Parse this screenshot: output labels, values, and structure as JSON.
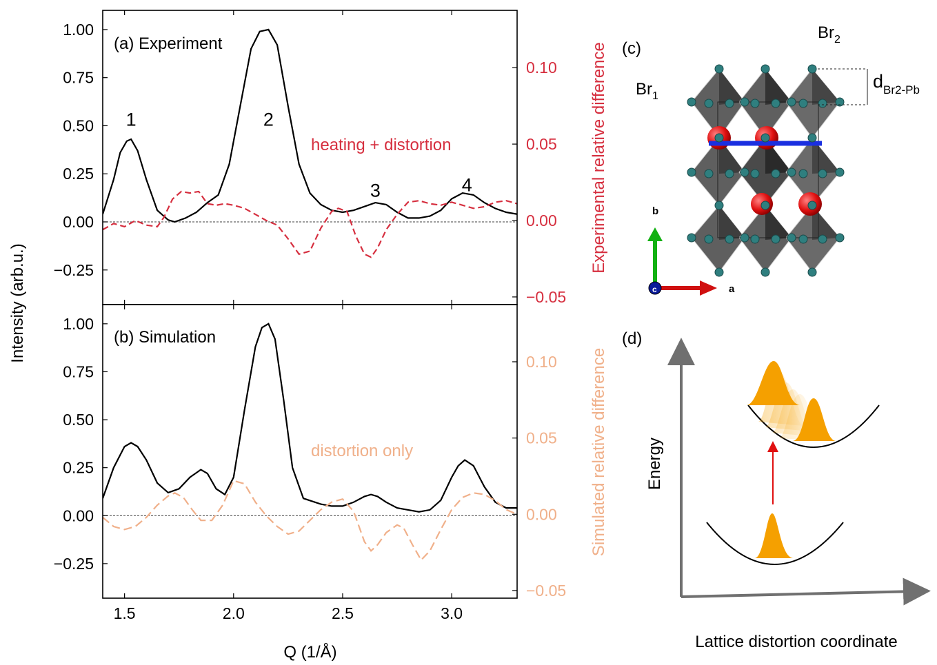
{
  "figure": {
    "x_axis_label": "Q (1/Å)",
    "y_axis_label_left": "Intensity (arb.u.)"
  },
  "chart_data": [
    {
      "id": "a",
      "type": "line",
      "panel_label": "(a) Experiment",
      "annotation": "heating + distortion",
      "xlim": [
        1.4,
        3.3
      ],
      "ylim_left": [
        -0.43,
        1.1
      ],
      "ylim_right": [
        -0.055,
        0.1375
      ],
      "x_ticks": [
        1.5,
        2.0,
        2.5,
        3.0
      ],
      "y_ticks_left": [
        -0.25,
        0.0,
        0.25,
        0.5,
        0.75,
        1.0
      ],
      "y_ticks_right": [
        -0.05,
        0.0,
        0.05,
        0.1
      ],
      "right_axis_label": "Experimental relative difference",
      "right_color": "#d62f3f",
      "peak_labels": [
        {
          "text": "1",
          "x": 1.53,
          "y": 0.5
        },
        {
          "text": "2",
          "x": 2.16,
          "y": 0.5
        },
        {
          "text": "3",
          "x": 2.65,
          "y": 0.13
        },
        {
          "text": "4",
          "x": 3.07,
          "y": 0.16
        }
      ],
      "series": [
        {
          "axis": "left",
          "color": "#000000",
          "dash": "",
          "x": [
            1.4,
            1.45,
            1.48,
            1.51,
            1.53,
            1.56,
            1.6,
            1.65,
            1.7,
            1.73,
            1.78,
            1.83,
            1.88,
            1.93,
            1.98,
            2.03,
            2.08,
            2.12,
            2.16,
            2.2,
            2.25,
            2.3,
            2.35,
            2.4,
            2.45,
            2.5,
            2.55,
            2.6,
            2.65,
            2.7,
            2.75,
            2.8,
            2.85,
            2.9,
            2.95,
            3.0,
            3.05,
            3.1,
            3.15,
            3.2,
            3.25,
            3.3
          ],
          "y": [
            0.04,
            0.22,
            0.36,
            0.42,
            0.43,
            0.37,
            0.22,
            0.06,
            0.01,
            0.0,
            0.02,
            0.05,
            0.1,
            0.14,
            0.3,
            0.6,
            0.9,
            0.99,
            1.0,
            0.92,
            0.6,
            0.3,
            0.15,
            0.09,
            0.06,
            0.05,
            0.06,
            0.08,
            0.1,
            0.09,
            0.05,
            0.02,
            0.02,
            0.03,
            0.06,
            0.12,
            0.15,
            0.14,
            0.1,
            0.07,
            0.05,
            0.04
          ]
        },
        {
          "axis": "right",
          "color": "#d62f3f",
          "dash": "9,5",
          "x": [
            1.4,
            1.45,
            1.5,
            1.55,
            1.6,
            1.65,
            1.68,
            1.72,
            1.76,
            1.8,
            1.84,
            1.88,
            1.92,
            1.96,
            2.0,
            2.05,
            2.1,
            2.15,
            2.2,
            2.25,
            2.3,
            2.35,
            2.4,
            2.45,
            2.48,
            2.52,
            2.56,
            2.6,
            2.63,
            2.66,
            2.7,
            2.75,
            2.8,
            2.85,
            2.9,
            2.95,
            3.0,
            3.05,
            3.1,
            3.15,
            3.2,
            3.25,
            3.3
          ],
          "y": [
            -0.006,
            -0.002,
            -0.004,
            0.0,
            -0.003,
            -0.004,
            0.002,
            0.014,
            0.019,
            0.018,
            0.019,
            0.011,
            0.01,
            0.011,
            0.01,
            0.008,
            0.004,
            0.0,
            -0.003,
            -0.012,
            -0.022,
            -0.02,
            -0.005,
            0.006,
            0.008,
            0.006,
            -0.01,
            -0.022,
            -0.024,
            -0.018,
            -0.006,
            0.004,
            0.012,
            0.013,
            0.011,
            0.01,
            0.012,
            0.01,
            0.008,
            0.009,
            0.012,
            0.013,
            0.011
          ]
        }
      ]
    },
    {
      "id": "b",
      "type": "line",
      "panel_label": "(b) Simulation",
      "annotation": "distortion only",
      "xlim": [
        1.4,
        3.3
      ],
      "ylim_left": [
        -0.43,
        1.1
      ],
      "ylim_right": [
        -0.055,
        0.1375
      ],
      "x_ticks": [
        1.5,
        2.0,
        2.5,
        3.0
      ],
      "x_tick_labels": [
        "1.5",
        "2.0",
        "2.5",
        "3.0"
      ],
      "y_ticks_left": [
        -0.25,
        0.0,
        0.25,
        0.5,
        0.75,
        1.0
      ],
      "y_ticks_right": [
        -0.05,
        0.0,
        0.05,
        0.1
      ],
      "right_axis_label": "Simulated relative difference",
      "right_color": "#f0b08a",
      "series": [
        {
          "axis": "left",
          "color": "#000000",
          "dash": "",
          "x": [
            1.4,
            1.45,
            1.5,
            1.53,
            1.56,
            1.6,
            1.65,
            1.7,
            1.75,
            1.8,
            1.85,
            1.88,
            1.92,
            1.96,
            2.0,
            2.05,
            2.1,
            2.13,
            2.16,
            2.19,
            2.23,
            2.27,
            2.32,
            2.4,
            2.45,
            2.5,
            2.55,
            2.6,
            2.63,
            2.66,
            2.7,
            2.75,
            2.8,
            2.85,
            2.9,
            2.95,
            3.0,
            3.03,
            3.06,
            3.1,
            3.15,
            3.2,
            3.25,
            3.3
          ],
          "y": [
            0.09,
            0.25,
            0.36,
            0.38,
            0.36,
            0.29,
            0.17,
            0.12,
            0.14,
            0.2,
            0.24,
            0.22,
            0.14,
            0.11,
            0.2,
            0.55,
            0.88,
            0.98,
            1.0,
            0.92,
            0.6,
            0.25,
            0.09,
            0.06,
            0.05,
            0.05,
            0.07,
            0.1,
            0.11,
            0.1,
            0.07,
            0.04,
            0.03,
            0.02,
            0.03,
            0.08,
            0.2,
            0.26,
            0.29,
            0.26,
            0.15,
            0.07,
            0.04,
            0.04
          ]
        },
        {
          "axis": "right",
          "color": "#f0b08a",
          "dash": "12,6",
          "x": [
            1.4,
            1.45,
            1.5,
            1.55,
            1.6,
            1.65,
            1.7,
            1.73,
            1.77,
            1.81,
            1.85,
            1.9,
            1.95,
            2.0,
            2.05,
            2.1,
            2.15,
            2.2,
            2.25,
            2.3,
            2.35,
            2.4,
            2.45,
            2.5,
            2.55,
            2.6,
            2.63,
            2.66,
            2.7,
            2.75,
            2.78,
            2.82,
            2.86,
            2.9,
            2.95,
            3.0,
            3.05,
            3.1,
            3.15,
            3.2,
            3.25,
            3.3
          ],
          "y": [
            -0.002,
            -0.008,
            -0.01,
            -0.008,
            -0.002,
            0.006,
            0.012,
            0.014,
            0.011,
            0.003,
            -0.004,
            -0.004,
            0.006,
            0.022,
            0.02,
            0.008,
            -0.001,
            -0.008,
            -0.013,
            -0.011,
            -0.004,
            0.003,
            0.008,
            0.01,
            0.002,
            -0.018,
            -0.024,
            -0.02,
            -0.012,
            -0.007,
            -0.009,
            -0.02,
            -0.03,
            -0.024,
            -0.01,
            0.003,
            0.011,
            0.014,
            0.013,
            0.009,
            0.003,
            0.0
          ]
        }
      ]
    }
  ],
  "structure_panel": {
    "label": "(c)",
    "br1": "Br",
    "br1_sub": "1",
    "br2": "Br",
    "br2_sub": "2",
    "dist": "d",
    "dist_sub": "Br2-Pb",
    "axis_b": "b",
    "axis_a": "a",
    "axis_c": "c",
    "colors": {
      "octahedra": "#5a5a5a",
      "halide": "#2f7f7f",
      "cation": "#e01010",
      "plane": "#1a2fe0"
    }
  },
  "energy_panel": {
    "label": "(d)",
    "y_label": "Energy",
    "x_label": "Lattice distortion coordinate",
    "colors": {
      "wavepacket": "#f5a000",
      "excite_arrow": "#e01010",
      "axes": "#707070"
    }
  }
}
